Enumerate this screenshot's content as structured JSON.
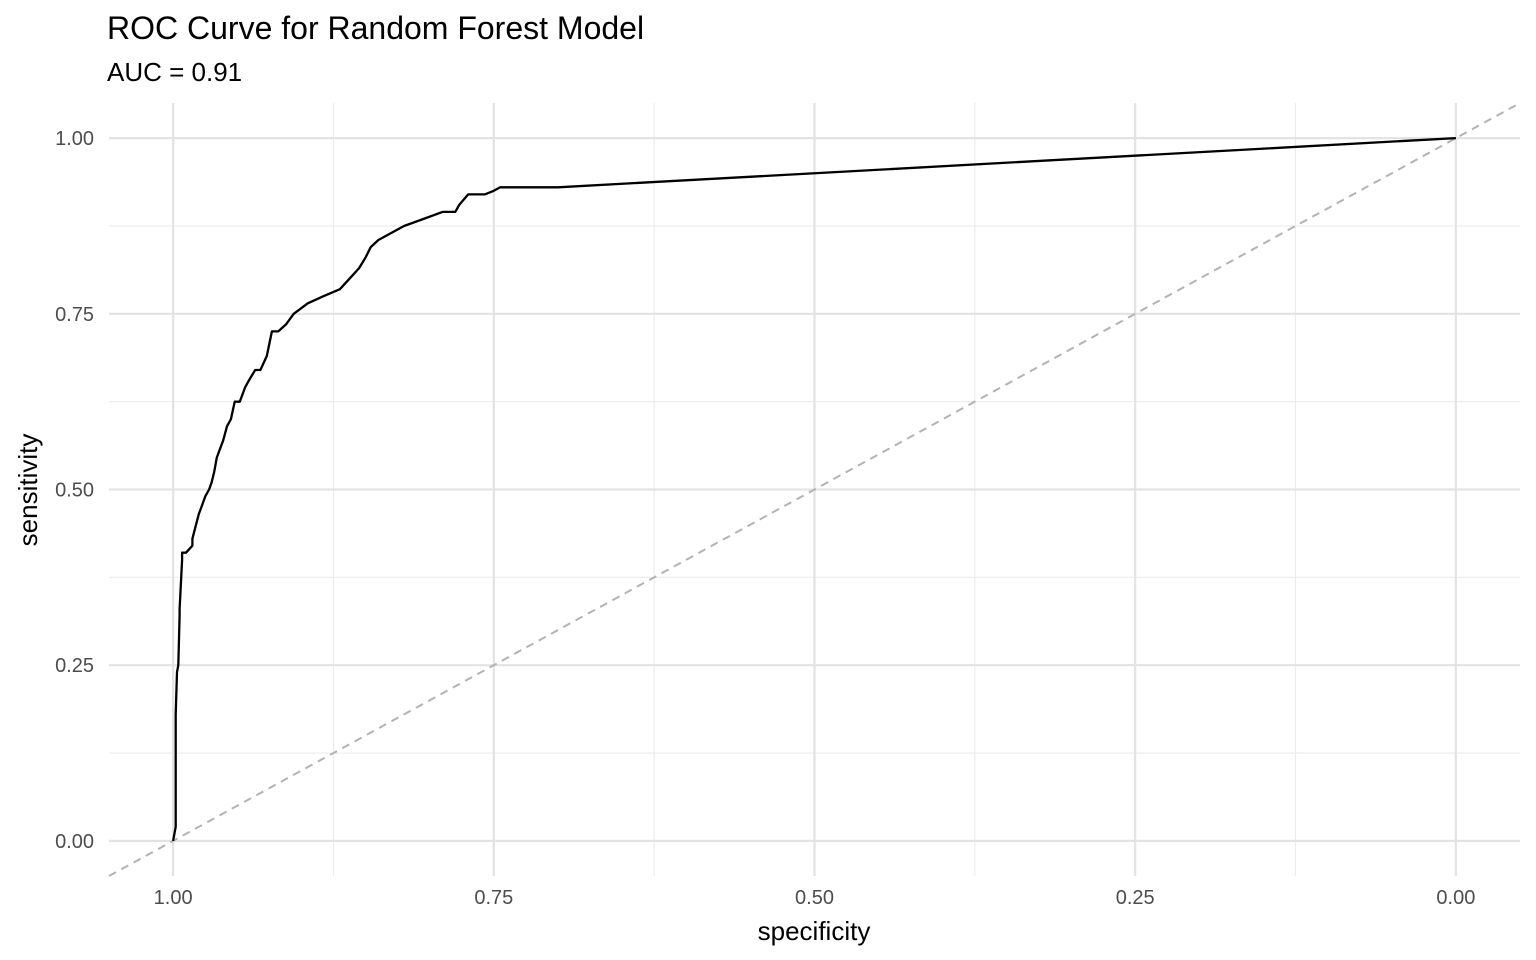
{
  "chart_data": {
    "type": "line",
    "title": "ROC Curve for Random Forest Model",
    "subtitle": "AUC = 0.91",
    "xlabel": "specificity",
    "ylabel": "sensitivity",
    "x_reversed": true,
    "xlim": [
      1.05,
      -0.05
    ],
    "ylim": [
      -0.05,
      1.05
    ],
    "grid": true,
    "x_ticks": [
      1.0,
      0.75,
      0.5,
      0.25,
      0.0
    ],
    "x_tick_labels": [
      "1.00",
      "0.75",
      "0.50",
      "0.25",
      "0.00"
    ],
    "y_ticks": [
      0.0,
      0.25,
      0.5,
      0.75,
      1.0
    ],
    "y_tick_labels": [
      "0.00",
      "0.25",
      "0.50",
      "0.75",
      "1.00"
    ],
    "reference_line": {
      "x": [
        1.05,
        -0.05
      ],
      "y": [
        -0.05,
        1.05
      ],
      "color": "#b3b3b3",
      "style": "dashed"
    },
    "series": [
      {
        "color": "#000000",
        "specificity": [
          1.0,
          0.998,
          0.998,
          0.997,
          0.996,
          0.995,
          0.995,
          0.993,
          0.993,
          0.99,
          0.985,
          0.985,
          0.98,
          0.978,
          0.975,
          0.972,
          0.97,
          0.968,
          0.966,
          0.963,
          0.961,
          0.958,
          0.955,
          0.952,
          0.948,
          0.944,
          0.941,
          0.936,
          0.932,
          0.927,
          0.923,
          0.918,
          0.912,
          0.906,
          0.895,
          0.883,
          0.87,
          0.865,
          0.86,
          0.855,
          0.85,
          0.846,
          0.84,
          0.83,
          0.82,
          0.805,
          0.79,
          0.78,
          0.777,
          0.77,
          0.757,
          0.75,
          0.745,
          0.7,
          0.0
        ],
        "sensitivity": [
          0.0,
          0.02,
          0.18,
          0.24,
          0.25,
          0.32,
          0.33,
          0.4,
          0.41,
          0.41,
          0.42,
          0.43,
          0.465,
          0.475,
          0.49,
          0.5,
          0.51,
          0.525,
          0.545,
          0.56,
          0.57,
          0.59,
          0.6,
          0.625,
          0.625,
          0.645,
          0.655,
          0.67,
          0.67,
          0.69,
          0.725,
          0.725,
          0.735,
          0.75,
          0.765,
          0.775,
          0.785,
          0.795,
          0.805,
          0.815,
          0.83,
          0.845,
          0.855,
          0.865,
          0.875,
          0.885,
          0.895,
          0.895,
          0.905,
          0.92,
          0.92,
          0.925,
          0.93,
          0.93,
          1.0
        ]
      }
    ]
  }
}
